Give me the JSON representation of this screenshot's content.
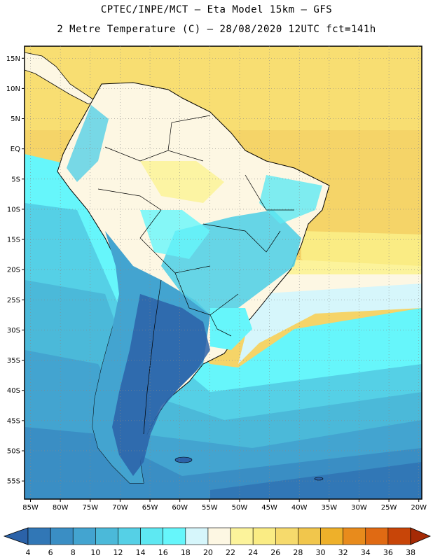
{
  "header": {
    "line1": "CPTEC/INPE/MCT –  Eta Model 15km – GFS",
    "line2": "2 Metre Temperature (C) – 28/08/2020 12UTC fct=141h"
  },
  "map": {
    "lat_labels": [
      "15N",
      "10N",
      "5N",
      "EQ",
      "5S",
      "10S",
      "15S",
      "20S",
      "25S",
      "30S",
      "35S",
      "40S",
      "45S",
      "50S",
      "55S"
    ],
    "lat_values": [
      15,
      10,
      5,
      0,
      -5,
      -10,
      -15,
      -20,
      -25,
      -30,
      -35,
      -40,
      -45,
      -50,
      -55
    ],
    "lon_labels": [
      "85W",
      "80W",
      "75W",
      "70W",
      "65W",
      "60W",
      "55W",
      "50W",
      "45W",
      "40W",
      "35W",
      "30W",
      "25W",
      "20W"
    ],
    "lon_values": [
      -85,
      -80,
      -75,
      -70,
      -65,
      -60,
      -55,
      -50,
      -45,
      -40,
      -35,
      -30,
      -25,
      -20
    ],
    "extent": {
      "lon_min": -86,
      "lon_max": -19.5,
      "lat_min": -58,
      "lat_max": 17
    }
  },
  "colorbar": {
    "labels": [
      "4",
      "6",
      "8",
      "10",
      "12",
      "14",
      "16",
      "18",
      "20",
      "22",
      "24",
      "26",
      "28",
      "30",
      "32",
      "34",
      "36",
      "38"
    ],
    "colors": [
      "#2b62a8",
      "#3177b6",
      "#3a8ec4",
      "#43a4d0",
      "#4bb9d9",
      "#55d0e6",
      "#5ee8f2",
      "#66f6fb",
      "#d6f6fb",
      "#fdf7e3",
      "#fcf39b",
      "#faec84",
      "#f6da6c",
      "#f1c64c",
      "#eeb02a",
      "#e88b1c",
      "#e06a13",
      "#c84508",
      "#a52a05"
    ]
  }
}
